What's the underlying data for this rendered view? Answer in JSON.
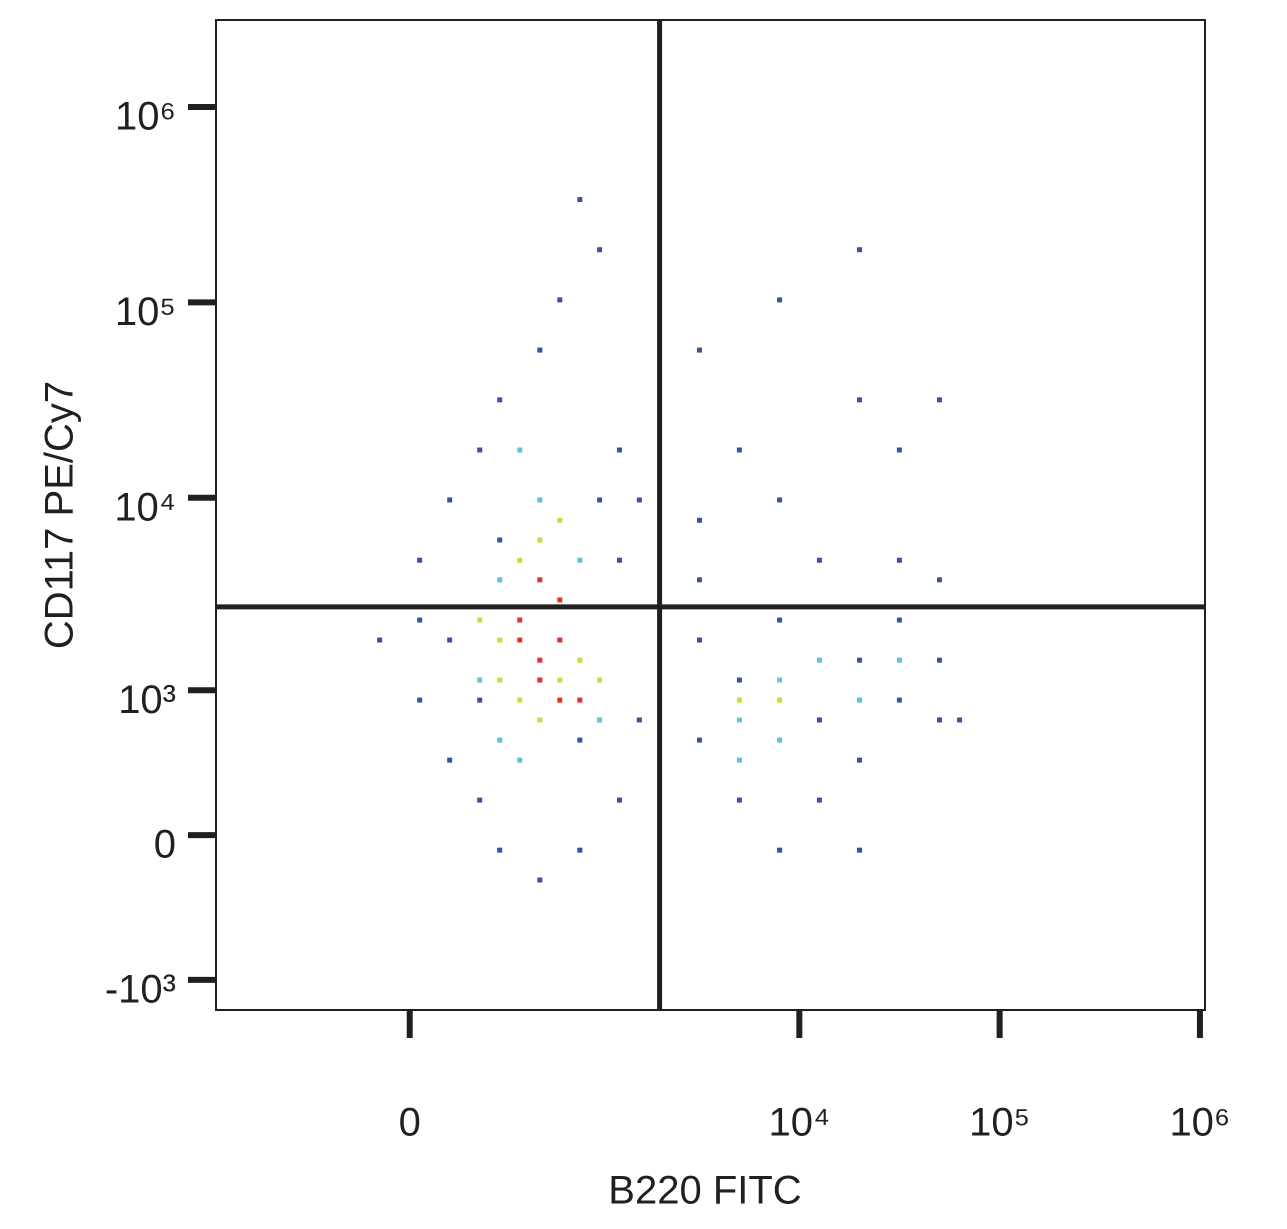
{
  "chart_data": {
    "type": "scatter",
    "x_label": "B220 FITC",
    "y_label": "CD117 PE/Cy7",
    "xscale": "asinh",
    "xscale_width": 227,
    "yscale": "asinh",
    "yscale_width": 375,
    "xlim": [
      -1040,
      1060000
    ],
    "ylim": [
      -1450,
      2790000
    ],
    "xticks": [
      0,
      {
        "value": 10000,
        "label": "10⁴"
      },
      {
        "value": 100000,
        "label": "10⁵"
      },
      {
        "value": 1000000,
        "label": "10⁶"
      }
    ],
    "yticks": [
      {
        "value": -1000,
        "label": "-10³"
      },
      0,
      {
        "value": 1000,
        "label": "10³"
      },
      {
        "value": 10000,
        "label": "10⁴"
      },
      {
        "value": 100000,
        "label": "10⁵"
      },
      {
        "value": 1000000,
        "label": "10⁶"
      }
    ],
    "quadrant_x": 2000,
    "quadrant_y": 2750,
    "series": [
      {
        "color": "#3b4fa3",
        "x": [
          203,
          279,
          481,
          617,
          994,
          786,
          108,
          26,
          108,
          26,
          108,
          203,
          279,
          481,
          786,
          1255,
          1582,
          1582,
          1255,
          3170,
          5020,
          7970,
          12600,
          19980,
          31600,
          3170,
          3170,
          5020,
          12600,
          19980,
          31600,
          50100,
          63100,
          31600,
          50100,
          19980,
          12600,
          5020,
          7970,
          3170,
          7970,
          19980,
          3170,
          50100,
          -80,
          26,
          994,
          1255,
          786,
          7970,
          203,
          279,
          19980,
          31600,
          50100
        ],
        "values": [
          17550,
          31700,
          57000,
          103000,
          186000,
          336000,
          9740,
          4780,
          1850,
          882,
          376,
          159,
          -67,
          -208,
          -67,
          159,
          680,
          9740,
          17550,
          7660,
          17550,
          9740,
          4780,
          31700,
          17550,
          1850,
          513,
          159,
          159,
          376,
          882,
          1450,
          680,
          2350,
          3790,
          1450,
          680,
          1136,
          2350,
          3790,
          103000,
          186000,
          57000,
          31700,
          1850,
          2350,
          9740,
          4780,
          513,
          -67,
          882,
          6070,
          -67,
          4780,
          680
        ]
      },
      {
        "color": "#5ec4d6",
        "x": [
          279,
          370,
          481,
          617,
          203,
          279,
          994,
          5020,
          7970,
          12600,
          19980,
          5020,
          31600,
          7970,
          786,
          370
        ],
        "values": [
          3790,
          17550,
          9740,
          1850,
          1136,
          513,
          680,
          680,
          1136,
          1450,
          882,
          376,
          1450,
          513,
          4780,
          376
        ]
      },
      {
        "color": "#c9dd36",
        "x": [
          279,
          370,
          481,
          370,
          617,
          481,
          786,
          203,
          279,
          7970,
          5020,
          617,
          994
        ],
        "values": [
          1850,
          4780,
          6070,
          882,
          1136,
          680,
          1450,
          2350,
          1136,
          882,
          882,
          7660,
          1136
        ]
      },
      {
        "color": "#e6312b",
        "x": [
          481,
          617,
          370,
          481,
          617,
          370,
          481,
          617,
          786
        ],
        "values": [
          1450,
          882,
          1850,
          1136,
          1850,
          2350,
          3790,
          2985,
          882
        ]
      }
    ]
  }
}
